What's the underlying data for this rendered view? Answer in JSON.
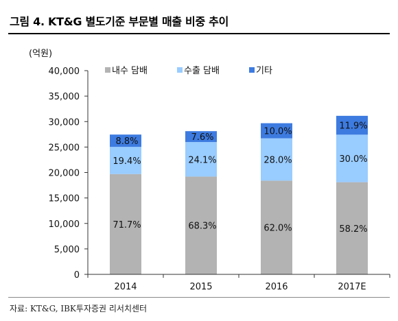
{
  "title": "그림 4. KT&G 별도기준 부문별 매출 비중 추이",
  "source": "자료: KT&G, IBK투자증권 리서치센터",
  "chart_data": {
    "type": "bar",
    "stacked": true,
    "unit": "(억원)",
    "categories": [
      "2014",
      "2015",
      "2016",
      "2017E"
    ],
    "ylim": [
      0,
      40000
    ],
    "yticks": [
      0,
      5000,
      10000,
      15000,
      20000,
      25000,
      30000,
      35000,
      40000
    ],
    "ytick_labels": [
      "0",
      "5,000",
      "10,000",
      "15,000",
      "20,000",
      "25,000",
      "30,000",
      "35,000",
      "40,000"
    ],
    "legend_position": "top",
    "grid": false,
    "series": [
      {
        "name": "내수 담배",
        "color": "#b3b3b3",
        "values": [
          19700,
          19200,
          18400,
          18100
        ],
        "labels": [
          "71.7%",
          "68.3%",
          "62.0%",
          "58.2%"
        ]
      },
      {
        "name": "수출 담배",
        "color": "#99ccff",
        "values": [
          5330,
          6780,
          8310,
          9330
        ],
        "labels": [
          "19.4%",
          "24.1%",
          "28.0%",
          "30.0%"
        ]
      },
      {
        "name": "기타",
        "color": "#3d7be0",
        "values": [
          2420,
          2140,
          2970,
          3700
        ],
        "labels": [
          "8.8%",
          "7.6%",
          "10.0%",
          "11.9%"
        ]
      }
    ]
  }
}
